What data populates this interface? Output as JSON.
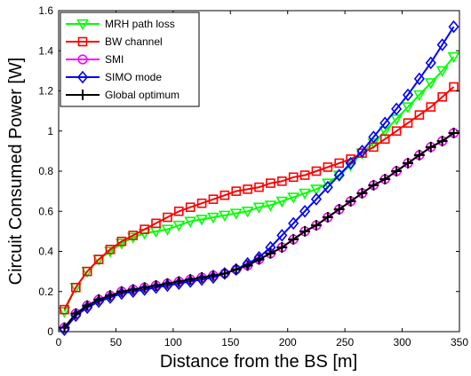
{
  "chart_data": {
    "type": "line",
    "xlabel": "Distance from the BS [m]",
    "ylabel": "Circuit Consumed Power [W]",
    "xlim": [
      0,
      350
    ],
    "ylim": [
      0,
      1.6
    ],
    "xticks": [
      0,
      50,
      100,
      150,
      200,
      250,
      300,
      350
    ],
    "yticks": [
      0,
      0.2,
      0.4,
      0.6,
      0.8,
      1,
      1.2,
      1.4,
      1.6
    ],
    "xtick_labels": [
      "0",
      "50",
      "100",
      "150",
      "200",
      "250",
      "300",
      "350"
    ],
    "ytick_labels": [
      "0",
      "0.2",
      "0.4",
      "0.6",
      "0.8",
      "1",
      "1.2",
      "1.4",
      "1.6"
    ],
    "grid": false,
    "legend_position": "top-left",
    "x": [
      5,
      15,
      25,
      35,
      45,
      55,
      65,
      75,
      85,
      95,
      105,
      115,
      125,
      135,
      145,
      155,
      165,
      175,
      185,
      195,
      205,
      215,
      225,
      235,
      245,
      255,
      265,
      275,
      285,
      295,
      305,
      315,
      325,
      335,
      345
    ],
    "series": [
      {
        "name": "MRH path loss",
        "color": "#00ff00",
        "marker": "triangle-down",
        "values": [
          0.1,
          0.22,
          0.3,
          0.36,
          0.4,
          0.44,
          0.47,
          0.49,
          0.5,
          0.51,
          0.53,
          0.55,
          0.56,
          0.57,
          0.58,
          0.59,
          0.6,
          0.62,
          0.63,
          0.65,
          0.67,
          0.69,
          0.71,
          0.74,
          0.78,
          0.83,
          0.89,
          0.94,
          1.0,
          1.06,
          1.12,
          1.18,
          1.24,
          1.3,
          1.37
        ]
      },
      {
        "name": "BW channel",
        "color": "#ff0000",
        "marker": "square",
        "values": [
          0.11,
          0.22,
          0.3,
          0.36,
          0.41,
          0.45,
          0.48,
          0.51,
          0.54,
          0.57,
          0.6,
          0.62,
          0.64,
          0.66,
          0.68,
          0.7,
          0.71,
          0.72,
          0.74,
          0.75,
          0.77,
          0.78,
          0.8,
          0.82,
          0.84,
          0.86,
          0.89,
          0.92,
          0.96,
          1.0,
          1.04,
          1.08,
          1.12,
          1.17,
          1.22
        ]
      },
      {
        "name": "SMI",
        "color": "#ff00ff",
        "marker": "circle",
        "values": [
          0.02,
          0.09,
          0.13,
          0.16,
          0.18,
          0.2,
          0.21,
          0.22,
          0.23,
          0.24,
          0.25,
          0.26,
          0.27,
          0.28,
          0.29,
          0.31,
          0.33,
          0.36,
          0.39,
          0.42,
          0.46,
          0.5,
          0.53,
          0.57,
          0.61,
          0.65,
          0.69,
          0.73,
          0.76,
          0.8,
          0.84,
          0.88,
          0.92,
          0.95,
          0.99
        ]
      },
      {
        "name": "SIMO mode",
        "color": "#0000ff",
        "marker": "diamond",
        "values": [
          0.01,
          0.08,
          0.12,
          0.15,
          0.17,
          0.19,
          0.2,
          0.21,
          0.22,
          0.23,
          0.24,
          0.25,
          0.26,
          0.27,
          0.29,
          0.31,
          0.34,
          0.37,
          0.42,
          0.48,
          0.54,
          0.6,
          0.66,
          0.72,
          0.78,
          0.84,
          0.9,
          0.97,
          1.04,
          1.11,
          1.18,
          1.26,
          1.34,
          1.43,
          1.52
        ]
      },
      {
        "name": "Global optimum",
        "color": "#000000",
        "marker": "plus",
        "values": [
          0.02,
          0.09,
          0.13,
          0.16,
          0.18,
          0.2,
          0.21,
          0.22,
          0.23,
          0.24,
          0.25,
          0.26,
          0.27,
          0.28,
          0.29,
          0.31,
          0.33,
          0.36,
          0.39,
          0.42,
          0.46,
          0.5,
          0.53,
          0.57,
          0.61,
          0.65,
          0.69,
          0.73,
          0.76,
          0.8,
          0.84,
          0.88,
          0.92,
          0.95,
          0.99
        ]
      }
    ]
  }
}
